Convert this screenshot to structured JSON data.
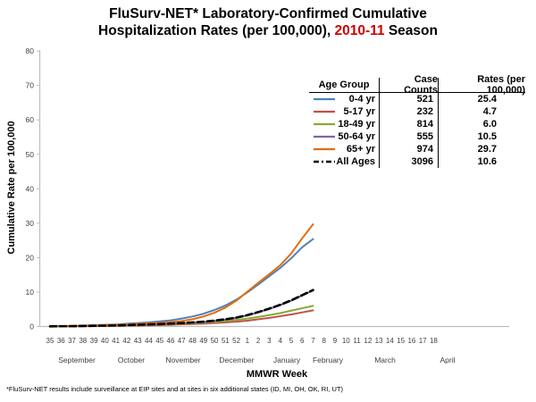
{
  "title": {
    "line1": "FluSurv-NET* Laboratory-Confirmed Cumulative",
    "line2_prefix": "Hospitalization Rates (per 100,000), ",
    "line2_season": "2010-11",
    "line2_suffix": " Season",
    "season_color": "#CC0000"
  },
  "chart_data": {
    "type": "line",
    "title": "FluSurv-NET* Laboratory-Confirmed Cumulative Hospitalization Rates (per 100,000), 2010-11 Season",
    "xlabel": "MMWR Week",
    "ylabel": "Cumulative Rate per 100,000",
    "ylim": [
      0,
      80
    ],
    "y_ticks": [
      0,
      10,
      20,
      30,
      40,
      50,
      60,
      70,
      80
    ],
    "x_categories": [
      "35",
      "36",
      "37",
      "38",
      "39",
      "40",
      "41",
      "42",
      "43",
      "44",
      "45",
      "46",
      "47",
      "48",
      "49",
      "50",
      "51",
      "52",
      "1",
      "2",
      "3",
      "4",
      "5",
      "6",
      "7",
      "8",
      "9",
      "10",
      "11",
      "12",
      "13",
      "14",
      "15",
      "16",
      "17",
      "18"
    ],
    "month_labels": [
      "September",
      "October",
      "November",
      "December",
      "January",
      "February",
      "March",
      "April"
    ],
    "grid": false,
    "legend_position": "top-right-table",
    "weeks_with_data": [
      "35",
      "36",
      "37",
      "38",
      "39",
      "40",
      "41",
      "42",
      "43",
      "44",
      "45",
      "46",
      "47",
      "48",
      "49",
      "50",
      "51",
      "52",
      "1",
      "2",
      "3",
      "4",
      "5",
      "6",
      "7"
    ],
    "series": [
      {
        "name": "0-4 yr",
        "color": "#4F81BD",
        "dashed": false,
        "values": [
          0.1,
          0.1,
          0.2,
          0.3,
          0.4,
          0.5,
          0.6,
          0.8,
          1.0,
          1.2,
          1.5,
          1.8,
          2.3,
          2.9,
          3.7,
          4.8,
          6.1,
          7.8,
          9.9,
          12.2,
          14.6,
          17.0,
          19.8,
          23.0,
          25.4
        ]
      },
      {
        "name": "5-17 yr",
        "color": "#C0504D",
        "dashed": false,
        "values": [
          0.0,
          0.05,
          0.05,
          0.1,
          0.1,
          0.15,
          0.2,
          0.25,
          0.3,
          0.35,
          0.4,
          0.5,
          0.6,
          0.7,
          0.85,
          1.0,
          1.2,
          1.4,
          1.7,
          2.1,
          2.5,
          3.0,
          3.5,
          4.1,
          4.7
        ]
      },
      {
        "name": "18-49 yr",
        "color": "#89A832",
        "dashed": false,
        "values": [
          0.0,
          0.05,
          0.1,
          0.1,
          0.15,
          0.2,
          0.25,
          0.3,
          0.35,
          0.45,
          0.55,
          0.65,
          0.8,
          0.95,
          1.1,
          1.3,
          1.6,
          1.9,
          2.3,
          2.8,
          3.3,
          3.9,
          4.6,
          5.3,
          6.0
        ]
      },
      {
        "name": "50-64 yr",
        "color": "#8064A2",
        "dashed": false,
        "values": [
          0.05,
          0.1,
          0.1,
          0.15,
          0.2,
          0.25,
          0.3,
          0.35,
          0.45,
          0.55,
          0.65,
          0.8,
          0.95,
          1.1,
          1.3,
          1.6,
          2.0,
          2.5,
          3.2,
          4.1,
          5.1,
          6.2,
          7.5,
          9.0,
          10.5
        ]
      },
      {
        "name": "65+ yr",
        "color": "#E46C0A",
        "dashed": false,
        "values": [
          0.1,
          0.1,
          0.2,
          0.2,
          0.3,
          0.4,
          0.5,
          0.6,
          0.8,
          0.9,
          1.1,
          1.3,
          1.6,
          2.1,
          2.9,
          4.0,
          5.5,
          7.5,
          10.1,
          12.7,
          15.2,
          17.8,
          21.2,
          25.6,
          29.7
        ]
      },
      {
        "name": "All Ages",
        "color": "#000000",
        "dashed": true,
        "values": [
          0.05,
          0.1,
          0.1,
          0.15,
          0.2,
          0.25,
          0.3,
          0.4,
          0.5,
          0.6,
          0.7,
          0.85,
          1.0,
          1.2,
          1.4,
          1.7,
          2.1,
          2.6,
          3.3,
          4.2,
          5.2,
          6.3,
          7.6,
          9.1,
          10.6
        ]
      }
    ]
  },
  "legend_table": {
    "headers": [
      "Age Group",
      "Case Counts",
      "Rates (per 100,000)"
    ],
    "rows": [
      {
        "label": "0-4 yr",
        "count": "521",
        "rate": "25.4",
        "color": "#4F81BD",
        "dashed": false
      },
      {
        "label": "5-17 yr",
        "count": "232",
        "rate": "4.7",
        "color": "#C0504D",
        "dashed": false
      },
      {
        "label": "18-49 yr",
        "count": "814",
        "rate": "6.0",
        "color": "#89A832",
        "dashed": false
      },
      {
        "label": "50-64 yr",
        "count": "555",
        "rate": "10.5",
        "color": "#8064A2",
        "dashed": false
      },
      {
        "label": "65+ yr",
        "count": "974",
        "rate": "29.7",
        "color": "#E46C0A",
        "dashed": false
      },
      {
        "label": "All Ages",
        "count": "3096",
        "rate": "10.6",
        "color": "#000000",
        "dashed": true
      }
    ]
  },
  "footnote": "*FluSurv-NET results include surveillance at EIP sites and at sites in six additional states (ID, MI, OH, OK, RI, UT)"
}
